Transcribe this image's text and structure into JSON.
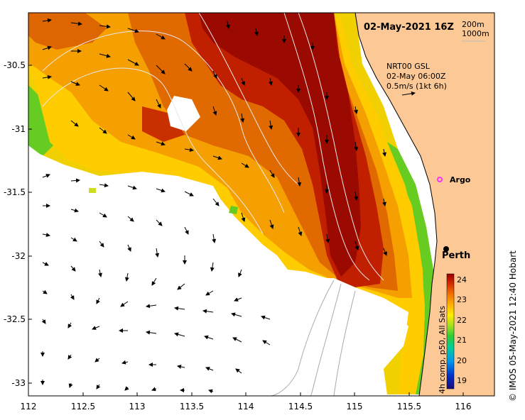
{
  "map": {
    "title": "02-May-2021 16Z",
    "depth_legend": [
      "200m",
      "1000m"
    ],
    "current_info": [
      "NRT00 GSL",
      "02-May 06:00Z",
      "0.5m/s (1kt 6h)"
    ],
    "places": [
      {
        "name": "Argo",
        "lon": 115.72,
        "lat": -31.39,
        "marker": "argo-float-icon",
        "color": "#ff33ff"
      },
      {
        "name": "Perth",
        "lon": 115.86,
        "lat": -31.95,
        "marker": "city-dot-icon",
        "color": "#000000"
      }
    ],
    "lon_ticks": [
      "112",
      "112.5",
      "113",
      "113.5",
      "114",
      "114.5",
      "115",
      "115.5",
      "116"
    ],
    "lat_ticks": [
      "-30.5",
      "-31",
      "-31.5",
      "-32",
      "-32.5",
      "-33"
    ],
    "colorbar": {
      "label": "4h comp, p50, All Sats",
      "ticks": [
        "24",
        "23",
        "22",
        "21",
        "20",
        "19"
      ],
      "range": [
        18.6,
        24.2
      ],
      "colors": [
        "#1a0a7a",
        "#0033cc",
        "#0099ee",
        "#00cc99",
        "#33cc33",
        "#99dd22",
        "#ffee00",
        "#ffaa00",
        "#ee6600",
        "#cc2200",
        "#990000"
      ]
    },
    "credit": "© IMOS 05-May-2021 12:40 Hobart",
    "colors": {
      "land": "#fcc896",
      "cloud_free": "#ffffff"
    }
  }
}
